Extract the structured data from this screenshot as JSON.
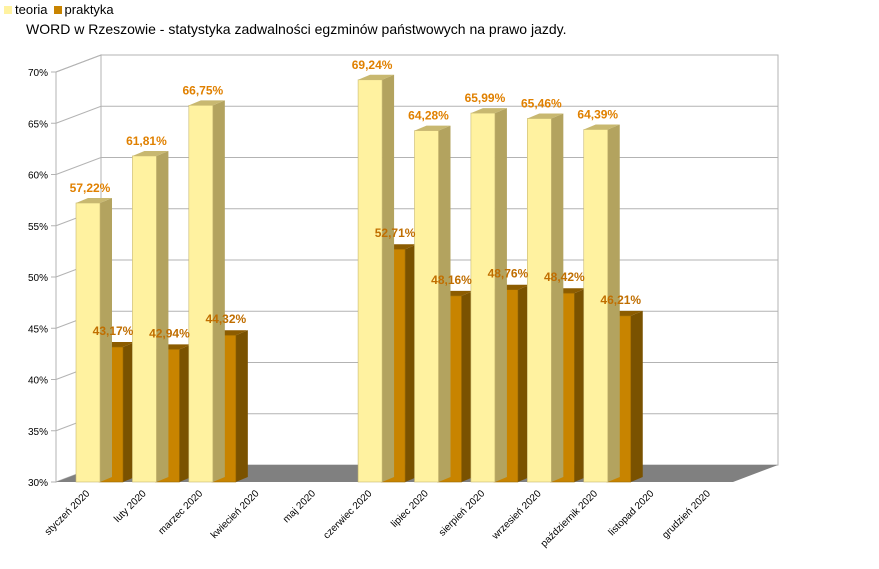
{
  "title": "WORD w Rzeszowie - statystyka zadwalności egzminów państwowych na prawo jazdy.",
  "chart_data": {
    "type": "bar",
    "title": "WORD w Rzeszowie - statystyka zadwalności egzminów państwowych na prawo jazdy.",
    "categories": [
      "styczeń 2020",
      "luty 2020",
      "marzec 2020",
      "kwiecień 2020",
      "maj 2020",
      "czerwiec 2020",
      "lipiec 2020",
      "sierpień 2020",
      "wrzesień 2020",
      "październik 2020",
      "listopad 2020",
      "grudzień 2020"
    ],
    "series": [
      {
        "name": "teoria",
        "values": [
          57.22,
          61.81,
          66.75,
          null,
          null,
          69.24,
          64.28,
          65.99,
          65.46,
          64.39,
          null,
          null
        ],
        "labels": [
          "57,22%",
          "61,81%",
          "66,75%",
          "",
          "",
          "69,24%",
          "64,28%",
          "65,99%",
          "65,46%",
          "64,39%",
          "",
          ""
        ]
      },
      {
        "name": "praktyka",
        "values": [
          43.17,
          42.94,
          44.32,
          null,
          null,
          52.71,
          48.16,
          48.76,
          48.42,
          46.21,
          null,
          null
        ],
        "labels": [
          "43,17%",
          "42,94%",
          "44,32%",
          "",
          "",
          "52,71%",
          "48,16%",
          "48,76%",
          "48,42%",
          "46,21%",
          "",
          ""
        ]
      }
    ],
    "yticks": [
      "30%",
      "35%",
      "40%",
      "45%",
      "50%",
      "55%",
      "60%",
      "65%",
      "70%"
    ],
    "ylim": [
      30,
      70
    ],
    "grid": true,
    "legend": "top-left",
    "colors": {
      "teoria": "#FFF2A0",
      "praktyka": "#C88400",
      "label": "#E08000"
    }
  }
}
